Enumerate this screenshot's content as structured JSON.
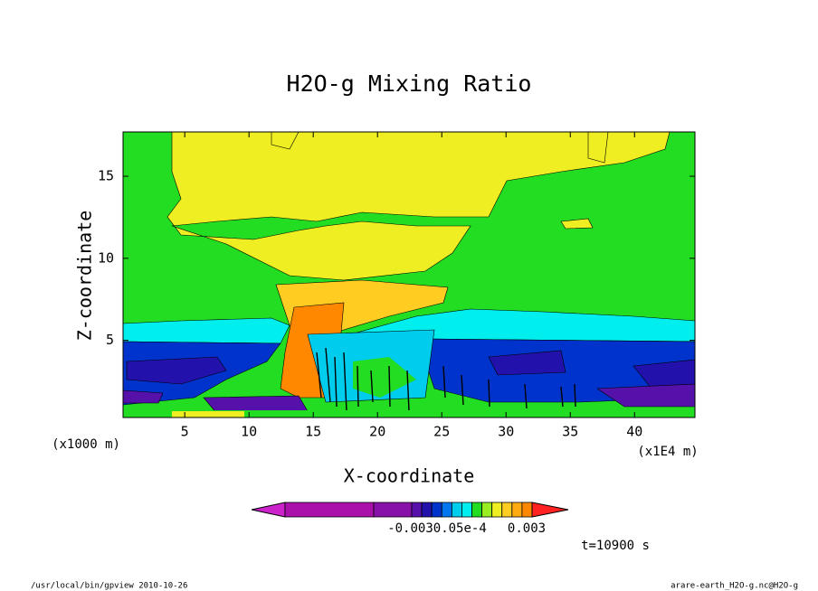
{
  "chart_data": {
    "type": "contour",
    "title": "H2O-g Mixing Ratio",
    "x_label": "X-coordinate",
    "y_label": "Z-coordinate",
    "x_unit": "(x1000 m)",
    "x_unit2": "(x1E4 m)",
    "xlim": [
      0.2,
      44.7
    ],
    "xticks": [
      5,
      10,
      15,
      20,
      25,
      30,
      35,
      40
    ],
    "ylim": [
      0.3,
      17.7
    ],
    "yticks": [
      5,
      10,
      15
    ],
    "colorbar": {
      "colors": [
        "#cc22cc",
        "#aa11aa",
        "#8811aa",
        "#5511aa",
        "#2211aa",
        "#0033cc",
        "#0077ee",
        "#00ccee",
        "#00eeee",
        "#22dd22",
        "#99ee22",
        "#eeee22",
        "#ffcc22",
        "#ffaa11",
        "#ff8800",
        "#ff2222"
      ],
      "labels": [
        "-0.0030.05e-4",
        "0.003"
      ]
    },
    "time_label": "t=10900 s",
    "footer_left": "/usr/local/bin/gpview  2010-10-26",
    "footer_right": "arare-earth_H2O-g.nc@H2O-g"
  }
}
